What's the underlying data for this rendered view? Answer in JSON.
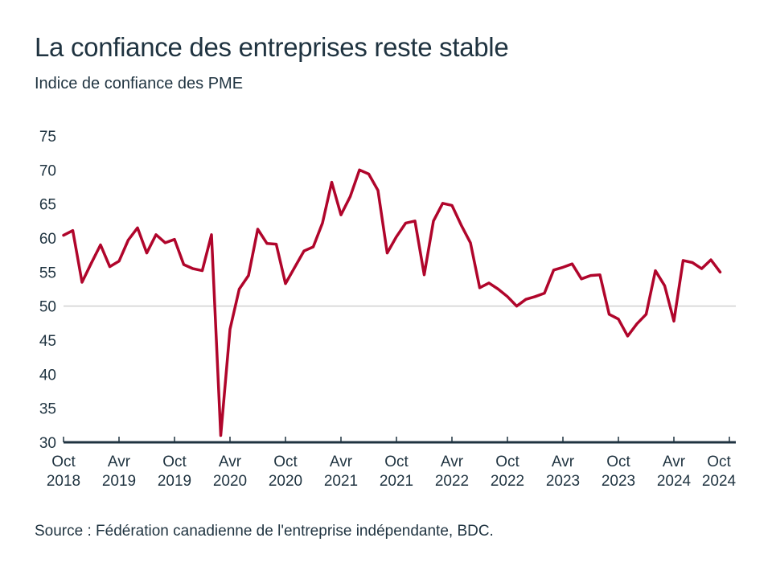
{
  "title": "La confiance des entreprises reste stable",
  "subtitle": "Indice de confiance des PME",
  "source": "Source : Fédération canadienne de l'entreprise indépendante, BDC.",
  "colors": {
    "line": "#b0052b",
    "text": "#1f3340",
    "axis": "#1f3340",
    "reference_line": "#d0d0d0"
  },
  "chart_data": {
    "type": "line",
    "title": "La confiance des entreprises reste stable",
    "ylabel": "Indice de confiance des PME",
    "xlabel": "",
    "ylim": [
      30,
      75
    ],
    "yticks": [
      30,
      35,
      40,
      45,
      50,
      55,
      60,
      65,
      70,
      75
    ],
    "reference_line": 50,
    "grid": false,
    "x_start": "2018-10",
    "x_frequency": "monthly",
    "xticks": [
      {
        "month": "2018-10",
        "label1": "Oct",
        "label2": "2018"
      },
      {
        "month": "2019-04",
        "label1": "Avr",
        "label2": "2019"
      },
      {
        "month": "2019-10",
        "label1": "Oct",
        "label2": "2019"
      },
      {
        "month": "2020-04",
        "label1": "Avr",
        "label2": "2020"
      },
      {
        "month": "2020-10",
        "label1": "Oct",
        "label2": "2020"
      },
      {
        "month": "2021-04",
        "label1": "Avr",
        "label2": "2021"
      },
      {
        "month": "2021-10",
        "label1": "Oct",
        "label2": "2021"
      },
      {
        "month": "2022-04",
        "label1": "Avr",
        "label2": "2022"
      },
      {
        "month": "2022-10",
        "label1": "Oct",
        "label2": "2022"
      },
      {
        "month": "2023-04",
        "label1": "Avr",
        "label2": "2023"
      },
      {
        "month": "2023-10",
        "label1": "Oct",
        "label2": "2023"
      },
      {
        "month": "2024-04",
        "label1": "Avr",
        "label2": "2024"
      },
      {
        "month": "2024-10",
        "label1": "Oct",
        "label2": "2024"
      }
    ],
    "series": [
      {
        "values": [
          60.4,
          61.1,
          53.5,
          56.3,
          59.0,
          55.8,
          56.6,
          59.7,
          61.5,
          57.8,
          60.5,
          59.3,
          59.8,
          56.1,
          55.5,
          55.2,
          60.5,
          31.0,
          46.6,
          52.5,
          54.5,
          61.3,
          59.2,
          59.1,
          53.3,
          55.7,
          58.1,
          58.7,
          62.2,
          68.2,
          63.4,
          66.1,
          70.0,
          69.4,
          67.0,
          57.8,
          60.2,
          62.2,
          62.5,
          54.6,
          62.5,
          65.1,
          64.8,
          61.9,
          59.3,
          52.7,
          53.4,
          52.5,
          51.4,
          50.0,
          51.0,
          51.4,
          51.9,
          55.3,
          55.7,
          56.2,
          54.0,
          54.5,
          54.6,
          48.8,
          48.1,
          45.6,
          47.4,
          48.8,
          55.2,
          53.0,
          47.8,
          56.7,
          56.4,
          55.5,
          56.8,
          55.0
        ]
      }
    ]
  }
}
